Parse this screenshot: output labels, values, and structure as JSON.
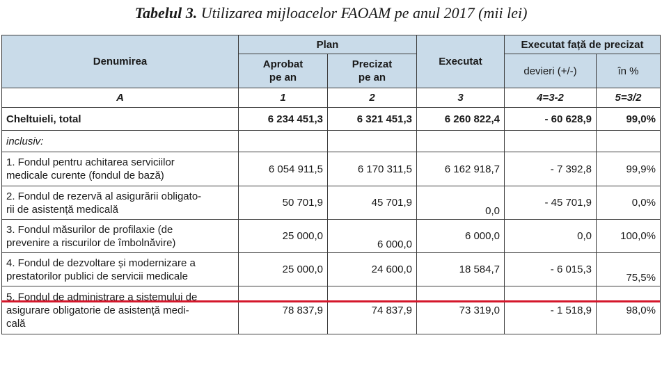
{
  "caption": {
    "lead": "Tabelul 3.",
    "rest": "Utilizarea mijloacelor FAOAM pe anul 2017 (mii lei)"
  },
  "header": {
    "denumirea": "Denumirea",
    "plan": "Plan",
    "aprobat": "Aprobat\npe an",
    "precizat": "Precizat\npe an",
    "executat": "Executat",
    "executat_fata": "Executat față de precizat",
    "devieri": "devieri (+/-)",
    "in_pct": "în %"
  },
  "index_row": [
    "A",
    "1",
    "2",
    "3",
    "4=3-2",
    "5=3/2"
  ],
  "rows": [
    {
      "name": "Cheltuieli, total",
      "aprobat": "6 234 451,3",
      "precizat": "6 321 451,3",
      "executat": "6 260 822,4",
      "devieri": "- 60 628,9",
      "pct": "99,0%"
    },
    {
      "name": "inclusiv:"
    },
    {
      "name": "1. Fondul pentru achitarea serviciilor\nmedicale curente (fondul de bază)",
      "aprobat": "6 054 911,5",
      "precizat": "6 170 311,5",
      "executat": "6 162 918,7",
      "devieri": "- 7 392,8",
      "pct": "99,9%"
    },
    {
      "name": "2. Fondul de rezervă al asigurării obligato-\nrii de asistență medicală",
      "aprobat": "50 701,9",
      "precizat": "45 701,9",
      "executat": "0,0",
      "devieri": "- 45 701,9",
      "pct": "0,0%"
    },
    {
      "name": "3. Fondul măsurilor de profilaxie (de\nprevenire a riscurilor de îmbolnăvire)",
      "aprobat": "25 000,0",
      "precizat": "6 000,0",
      "executat": "6 000,0",
      "devieri": "0,0",
      "pct": "100,0%"
    },
    {
      "name": "4. Fondul de dezvoltare și modernizare a\nprestatorilor publici de servicii medicale",
      "aprobat": "25 000,0",
      "precizat": "24 600,0",
      "executat": "18 584,7",
      "devieri": "- 6 015,3",
      "pct": "75,5%"
    },
    {
      "name": "5. Fondul de administrare a sistemului de\nasigurare obligatorie de asistență medi-\ncală",
      "aprobat": "78 837,9",
      "precizat": "74 837,9",
      "executat": "73 319,0",
      "devieri": "- 1 518,9",
      "pct": "98,0%"
    }
  ],
  "colors": {
    "header_bg": "#c9dbe9",
    "highlight_line": "#d4172b",
    "border": "#3c3c3c"
  }
}
